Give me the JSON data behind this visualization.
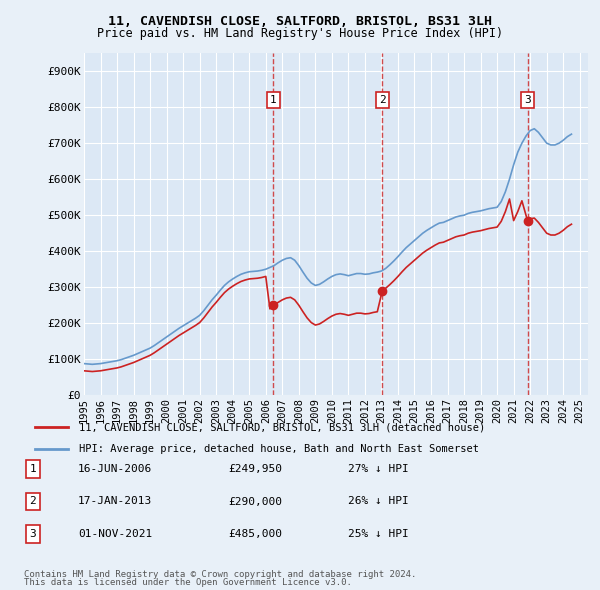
{
  "title1": "11, CAVENDISH CLOSE, SALTFORD, BRISTOL, BS31 3LH",
  "title2": "Price paid vs. HM Land Registry's House Price Index (HPI)",
  "ylabel_ticks": [
    "£0",
    "£100K",
    "£200K",
    "£300K",
    "£400K",
    "£500K",
    "£600K",
    "£700K",
    "£800K",
    "£900K"
  ],
  "ytick_values": [
    0,
    100000,
    200000,
    300000,
    400000,
    500000,
    600000,
    700000,
    800000,
    900000
  ],
  "ylim": [
    0,
    950000
  ],
  "xlim_start": 1995.0,
  "xlim_end": 2025.5,
  "xtick_years": [
    1995,
    1996,
    1997,
    1998,
    1999,
    2000,
    2001,
    2002,
    2003,
    2004,
    2005,
    2006,
    2007,
    2008,
    2009,
    2010,
    2011,
    2012,
    2013,
    2014,
    2015,
    2016,
    2017,
    2018,
    2019,
    2020,
    2021,
    2022,
    2023,
    2024,
    2025
  ],
  "background_color": "#e8f0f8",
  "plot_bg_color": "#dce8f5",
  "grid_color": "#ffffff",
  "hpi_color": "#6699cc",
  "price_color": "#cc2222",
  "sale_marker_color": "#cc2222",
  "vline_color": "#cc2222",
  "legend_line1": "11, CAVENDISH CLOSE, SALTFORD, BRISTOL, BS31 3LH (detached house)",
  "legend_line2": "HPI: Average price, detached house, Bath and North East Somerset",
  "sales": [
    {
      "num": 1,
      "date": "16-JUN-2006",
      "price": 249950,
      "hpi_pct": "27%",
      "x": 2006.46
    },
    {
      "num": 2,
      "date": "17-JAN-2013",
      "price": 290000,
      "hpi_pct": "26%",
      "x": 2013.05
    },
    {
      "num": 3,
      "date": "01-NOV-2021",
      "price": 485000,
      "hpi_pct": "25%",
      "x": 2021.84
    }
  ],
  "footer1": "Contains HM Land Registry data © Crown copyright and database right 2024.",
  "footer2": "This data is licensed under the Open Government Licence v3.0.",
  "hpi_data_x": [
    1995.0,
    1995.25,
    1995.5,
    1995.75,
    1996.0,
    1996.25,
    1996.5,
    1996.75,
    1997.0,
    1997.25,
    1997.5,
    1997.75,
    1998.0,
    1998.25,
    1998.5,
    1998.75,
    1999.0,
    1999.25,
    1999.5,
    1999.75,
    2000.0,
    2000.25,
    2000.5,
    2000.75,
    2001.0,
    2001.25,
    2001.5,
    2001.75,
    2002.0,
    2002.25,
    2002.5,
    2002.75,
    2003.0,
    2003.25,
    2003.5,
    2003.75,
    2004.0,
    2004.25,
    2004.5,
    2004.75,
    2005.0,
    2005.25,
    2005.5,
    2005.75,
    2006.0,
    2006.25,
    2006.5,
    2006.75,
    2007.0,
    2007.25,
    2007.5,
    2007.75,
    2008.0,
    2008.25,
    2008.5,
    2008.75,
    2009.0,
    2009.25,
    2009.5,
    2009.75,
    2010.0,
    2010.25,
    2010.5,
    2010.75,
    2011.0,
    2011.25,
    2011.5,
    2011.75,
    2012.0,
    2012.25,
    2012.5,
    2012.75,
    2013.0,
    2013.25,
    2013.5,
    2013.75,
    2014.0,
    2014.25,
    2014.5,
    2014.75,
    2015.0,
    2015.25,
    2015.5,
    2015.75,
    2016.0,
    2016.25,
    2016.5,
    2016.75,
    2017.0,
    2017.25,
    2017.5,
    2017.75,
    2018.0,
    2018.25,
    2018.5,
    2018.75,
    2019.0,
    2019.25,
    2019.5,
    2019.75,
    2020.0,
    2020.25,
    2020.5,
    2020.75,
    2021.0,
    2021.25,
    2021.5,
    2021.75,
    2022.0,
    2022.25,
    2022.5,
    2022.75,
    2023.0,
    2023.25,
    2023.5,
    2023.75,
    2024.0,
    2024.25,
    2024.5
  ],
  "hpi_data_y": [
    88000,
    87000,
    86000,
    87000,
    88000,
    90000,
    92000,
    94000,
    96000,
    99000,
    103000,
    107000,
    111000,
    116000,
    121000,
    126000,
    131000,
    138000,
    146000,
    154000,
    162000,
    170000,
    178000,
    186000,
    193000,
    200000,
    207000,
    214000,
    222000,
    235000,
    250000,
    265000,
    278000,
    292000,
    305000,
    315000,
    323000,
    330000,
    336000,
    340000,
    343000,
    344000,
    345000,
    347000,
    350000,
    355000,
    360000,
    368000,
    375000,
    380000,
    382000,
    375000,
    360000,
    342000,
    325000,
    312000,
    305000,
    308000,
    315000,
    323000,
    330000,
    335000,
    337000,
    335000,
    332000,
    335000,
    338000,
    338000,
    336000,
    337000,
    340000,
    342000,
    345000,
    352000,
    362000,
    373000,
    385000,
    398000,
    410000,
    420000,
    430000,
    440000,
    450000,
    458000,
    465000,
    472000,
    478000,
    480000,
    485000,
    490000,
    495000,
    498000,
    500000,
    505000,
    508000,
    510000,
    512000,
    515000,
    518000,
    520000,
    522000,
    538000,
    565000,
    600000,
    640000,
    675000,
    700000,
    720000,
    735000,
    740000,
    730000,
    715000,
    700000,
    695000,
    695000,
    700000,
    708000,
    718000,
    725000
  ],
  "price_data_x": [
    1995.0,
    1995.25,
    1995.5,
    1995.75,
    1996.0,
    1996.25,
    1996.5,
    1996.75,
    1997.0,
    1997.25,
    1997.5,
    1997.75,
    1998.0,
    1998.25,
    1998.5,
    1998.75,
    1999.0,
    1999.25,
    1999.5,
    1999.75,
    2000.0,
    2000.25,
    2000.5,
    2000.75,
    2001.0,
    2001.25,
    2001.5,
    2001.75,
    2002.0,
    2002.25,
    2002.5,
    2002.75,
    2003.0,
    2003.25,
    2003.5,
    2003.75,
    2004.0,
    2004.25,
    2004.5,
    2004.75,
    2005.0,
    2005.25,
    2005.5,
    2005.75,
    2006.0,
    2006.25,
    2006.46,
    2006.75,
    2007.0,
    2007.25,
    2007.5,
    2007.75,
    2008.0,
    2008.25,
    2008.5,
    2008.75,
    2009.0,
    2009.25,
    2009.5,
    2009.75,
    2010.0,
    2010.25,
    2010.5,
    2010.75,
    2011.0,
    2011.25,
    2011.5,
    2011.75,
    2012.0,
    2012.25,
    2012.5,
    2012.75,
    2013.05,
    2013.25,
    2013.5,
    2013.75,
    2014.0,
    2014.25,
    2014.5,
    2014.75,
    2015.0,
    2015.25,
    2015.5,
    2015.75,
    2016.0,
    2016.25,
    2016.5,
    2016.75,
    2017.0,
    2017.25,
    2017.5,
    2017.75,
    2018.0,
    2018.25,
    2018.5,
    2018.75,
    2019.0,
    2019.25,
    2019.5,
    2019.75,
    2020.0,
    2020.25,
    2020.5,
    2020.75,
    2021.0,
    2021.25,
    2021.5,
    2021.84,
    2022.0,
    2022.25,
    2022.5,
    2022.75,
    2023.0,
    2023.25,
    2023.5,
    2023.75,
    2024.0,
    2024.25,
    2024.5
  ],
  "price_data_y": [
    68000,
    67000,
    66000,
    67000,
    68000,
    70000,
    72000,
    74000,
    76000,
    79000,
    83000,
    87000,
    91000,
    96000,
    101000,
    106000,
    111000,
    118000,
    126000,
    134000,
    142000,
    150000,
    158000,
    166000,
    173000,
    180000,
    187000,
    194000,
    202000,
    215000,
    230000,
    245000,
    258000,
    272000,
    285000,
    295000,
    303000,
    310000,
    316000,
    320000,
    323000,
    324000,
    325000,
    327000,
    330000,
    240000,
    249950,
    258000,
    265000,
    270000,
    272000,
    265000,
    250000,
    232000,
    215000,
    202000,
    195000,
    198000,
    205000,
    213000,
    220000,
    225000,
    227000,
    225000,
    222000,
    225000,
    228000,
    228000,
    226000,
    227000,
    230000,
    232000,
    290000,
    297000,
    307000,
    318000,
    330000,
    343000,
    355000,
    365000,
    375000,
    385000,
    395000,
    403000,
    410000,
    417000,
    423000,
    425000,
    430000,
    435000,
    440000,
    443000,
    445000,
    450000,
    453000,
    455000,
    457000,
    460000,
    463000,
    465000,
    467000,
    483000,
    510000,
    545000,
    485000,
    510000,
    540000,
    485000,
    490000,
    492000,
    480000,
    465000,
    450000,
    445000,
    445000,
    450000,
    458000,
    468000,
    475000
  ]
}
